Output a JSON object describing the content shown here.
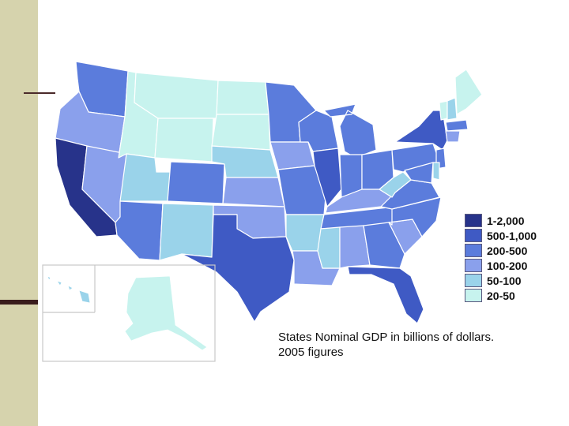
{
  "palette": {
    "c1": "#27338a",
    "c2": "#3f5ac4",
    "c3": "#5b7cdc",
    "c4": "#8aa0ec",
    "c5": "#9ad3ea",
    "c6": "#c7f3ee"
  },
  "legend": [
    {
      "label": "1-2,000",
      "color": "#27338a"
    },
    {
      "label": "500-1,000",
      "color": "#3f5ac4"
    },
    {
      "label": "200-500",
      "color": "#5b7cdc"
    },
    {
      "label": "100-200",
      "color": "#8aa0ec"
    },
    {
      "label": "50-100",
      "color": "#9ad3ea"
    },
    {
      "label": "20-50",
      "color": "#c7f3ee"
    }
  ],
  "caption": {
    "line1": "States Nominal GDP in billions of dollars.",
    "line2": "2005 figures"
  },
  "states": [
    {
      "name": "Washington",
      "band": "200-500"
    },
    {
      "name": "Oregon",
      "band": "100-200"
    },
    {
      "name": "California",
      "band": "1-2,000"
    },
    {
      "name": "Nevada",
      "band": "100-200"
    },
    {
      "name": "Idaho",
      "band": "20-50"
    },
    {
      "name": "Montana",
      "band": "20-50"
    },
    {
      "name": "Wyoming",
      "band": "20-50"
    },
    {
      "name": "Utah",
      "band": "50-100"
    },
    {
      "name": "Arizona",
      "band": "200-500"
    },
    {
      "name": "Colorado",
      "band": "200-500"
    },
    {
      "name": "New Mexico",
      "band": "50-100"
    },
    {
      "name": "North Dakota",
      "band": "20-50"
    },
    {
      "name": "South Dakota",
      "band": "20-50"
    },
    {
      "name": "Nebraska",
      "band": "50-100"
    },
    {
      "name": "Kansas",
      "band": "100-200"
    },
    {
      "name": "Oklahoma",
      "band": "100-200"
    },
    {
      "name": "Texas",
      "band": "500-1,000"
    },
    {
      "name": "Minnesota",
      "band": "200-500"
    },
    {
      "name": "Iowa",
      "band": "100-200"
    },
    {
      "name": "Missouri",
      "band": "200-500"
    },
    {
      "name": "Arkansas",
      "band": "50-100"
    },
    {
      "name": "Louisiana",
      "band": "100-200"
    },
    {
      "name": "Wisconsin",
      "band": "200-500"
    },
    {
      "name": "Illinois",
      "band": "500-1,000"
    },
    {
      "name": "Michigan",
      "band": "200-500"
    },
    {
      "name": "Indiana",
      "band": "200-500"
    },
    {
      "name": "Ohio",
      "band": "200-500"
    },
    {
      "name": "Kentucky",
      "band": "100-200"
    },
    {
      "name": "Tennessee",
      "band": "200-500"
    },
    {
      "name": "Mississippi",
      "band": "50-100"
    },
    {
      "name": "Alabama",
      "band": "100-200"
    },
    {
      "name": "Georgia",
      "band": "200-500"
    },
    {
      "name": "Florida",
      "band": "500-1,000"
    },
    {
      "name": "South Carolina",
      "band": "100-200"
    },
    {
      "name": "North Carolina",
      "band": "200-500"
    },
    {
      "name": "Virginia",
      "band": "200-500"
    },
    {
      "name": "West Virginia",
      "band": "50-100"
    },
    {
      "name": "Pennsylvania",
      "band": "200-500"
    },
    {
      "name": "New York",
      "band": "500-1,000"
    },
    {
      "name": "Vermont",
      "band": "20-50"
    },
    {
      "name": "New Hampshire",
      "band": "50-100"
    },
    {
      "name": "Maine",
      "band": "20-50"
    },
    {
      "name": "Massachusetts",
      "band": "200-500"
    },
    {
      "name": "Connecticut",
      "band": "100-200"
    },
    {
      "name": "New Jersey",
      "band": "200-500"
    },
    {
      "name": "Delaware",
      "band": "50-100"
    },
    {
      "name": "Maryland",
      "band": "200-500"
    },
    {
      "name": "Alaska",
      "band": "20-50"
    },
    {
      "name": "Hawaii",
      "band": "50-100"
    }
  ]
}
